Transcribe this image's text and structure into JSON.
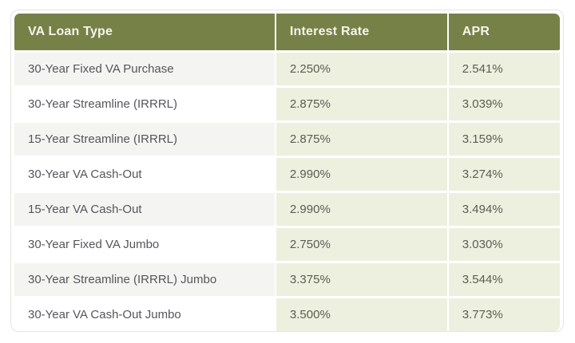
{
  "colors": {
    "header_bg": "#768147",
    "header_text": "#f7f4ec",
    "rate_cell_bg": "#edf0de",
    "row_alt_bg": "#f4f4f2",
    "row_bg": "#ffffff",
    "body_text": "#55565a",
    "outer_border": "#e4e4e0",
    "page_bg": "#ffffff"
  },
  "table": {
    "columns": [
      "VA Loan Type",
      "Interest Rate",
      "APR"
    ],
    "rows": [
      {
        "loan_type": "30-Year Fixed VA Purchase",
        "interest_rate": "2.250%",
        "apr": "2.541%"
      },
      {
        "loan_type": "30-Year Streamline (IRRRL)",
        "interest_rate": "2.875%",
        "apr": "3.039%"
      },
      {
        "loan_type": "15-Year Streamline (IRRRL)",
        "interest_rate": "2.875%",
        "apr": "3.159%"
      },
      {
        "loan_type": "30-Year VA Cash-Out",
        "interest_rate": "2.990%",
        "apr": "3.274%"
      },
      {
        "loan_type": "15-Year VA Cash-Out",
        "interest_rate": "2.990%",
        "apr": "3.494%"
      },
      {
        "loan_type": "30-Year Fixed VA Jumbo",
        "interest_rate": "2.750%",
        "apr": "3.030%"
      },
      {
        "loan_type": "30-Year Streamline (IRRRL) Jumbo",
        "interest_rate": "3.375%",
        "apr": "3.544%"
      },
      {
        "loan_type": "30-Year VA Cash-Out Jumbo",
        "interest_rate": "3.500%",
        "apr": "3.773%"
      }
    ]
  },
  "chart_data": {
    "type": "table",
    "title": "",
    "columns": [
      "VA Loan Type",
      "Interest Rate",
      "APR"
    ],
    "rows": [
      [
        "30-Year Fixed VA Purchase",
        "2.250%",
        "2.541%"
      ],
      [
        "30-Year Streamline (IRRRL)",
        "2.875%",
        "3.039%"
      ],
      [
        "15-Year Streamline (IRRRL)",
        "2.875%",
        "3.159%"
      ],
      [
        "30-Year VA Cash-Out",
        "2.990%",
        "3.274%"
      ],
      [
        "15-Year VA Cash-Out",
        "2.990%",
        "3.494%"
      ],
      [
        "30-Year Fixed VA Jumbo",
        "2.750%",
        "3.030%"
      ],
      [
        "30-Year Streamline (IRRRL) Jumbo",
        "3.375%",
        "3.544%"
      ],
      [
        "30-Year VA Cash-Out Jumbo",
        "3.500%",
        "3.773%"
      ]
    ],
    "layout_hints": {
      "header_style": "olive-green bar, white bold text",
      "loan_type_column": "alternating light-gray / white rows",
      "rate_columns": "constant pale-green background",
      "grid": "thin white gutters between cells, rounded outer corners"
    }
  }
}
